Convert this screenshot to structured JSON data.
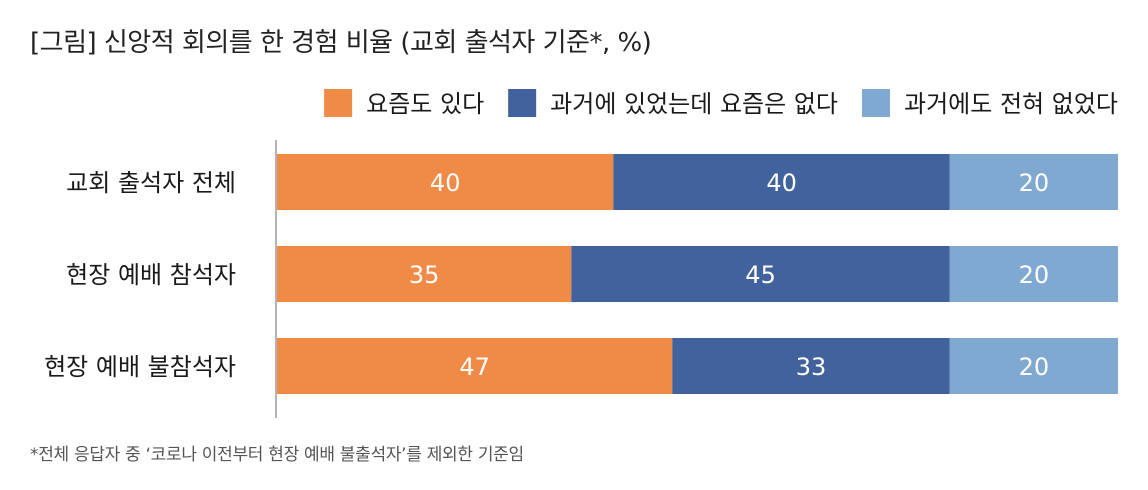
{
  "title": "[그림] 신앙적 회의를 한 경험 비율 (교회 출석자 기준*, %)",
  "footnote": "*전체 응답자 중 ‘코로나 이전부터 현장 예배 불출석자’를 제외한 기준임",
  "chart_data": {
    "type": "bar",
    "orientation": "horizontal",
    "stacked": true,
    "categories": [
      "교회 출석자 전체",
      "현장 예배 참석자",
      "현장 예배 불참석자"
    ],
    "series": [
      {
        "name": "요즘도 있다",
        "values": [
          40,
          35,
          47
        ],
        "color": "#ef8a47"
      },
      {
        "name": "과거에 있었는데 요즘은 없다",
        "values": [
          40,
          45,
          33
        ],
        "color": "#41629c"
      },
      {
        "name": "과거에도 전혀 없었다",
        "values": [
          20,
          20,
          20
        ],
        "color": "#7fa9d1"
      }
    ],
    "xlim": [
      0,
      100
    ],
    "grid": false,
    "legend_position": "top-right",
    "label_color": "#ffffff"
  }
}
